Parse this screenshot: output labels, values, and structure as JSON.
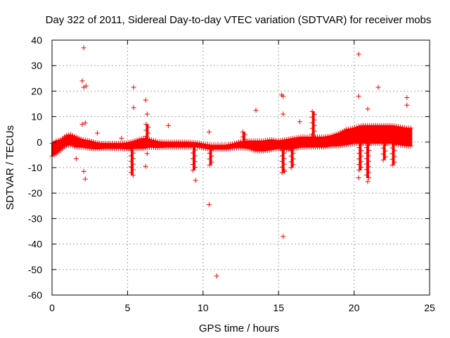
{
  "chart_data": {
    "type": "scatter",
    "title": "Day 322 of 2011, Sidereal Day-to-day VTEC variation (SDTVAR) for receiver mobs",
    "xlabel": "GPS time / hours",
    "ylabel": "SDTVAR / TECUs",
    "xlim": [
      0,
      25
    ],
    "ylim": [
      -60,
      40
    ],
    "xticks": [
      "0",
      "5",
      "10",
      "15",
      "20",
      "25"
    ],
    "yticks": [
      "40",
      "30",
      "20",
      "10",
      "0",
      "-10",
      "-20",
      "-30",
      "-40",
      "-50",
      "-60"
    ],
    "grid": true,
    "marker": "+",
    "color": "#ff0000",
    "band": {
      "x": [
        0.0,
        0.3,
        0.6,
        0.9,
        1.2,
        1.6,
        2.0,
        2.5,
        3.0,
        3.5,
        4.0,
        4.5,
        5.0,
        5.5,
        6.0,
        6.5,
        7.0,
        7.5,
        8.0,
        8.5,
        9.0,
        9.5,
        10.0,
        10.5,
        11.0,
        11.5,
        12.0,
        12.5,
        13.0,
        13.5,
        14.0,
        14.5,
        15.0,
        15.5,
        16.0,
        16.5,
        17.0,
        17.5,
        18.0,
        18.5,
        19.0,
        19.5,
        20.0,
        20.5,
        21.0,
        21.5,
        22.0,
        22.5,
        23.0,
        23.5,
        23.8
      ],
      "center": [
        -3.0,
        -2.0,
        -1.0,
        0.5,
        1.0,
        0.0,
        -0.5,
        -1.0,
        -1.5,
        -1.5,
        -1.5,
        -1.5,
        -1.5,
        -1.0,
        -0.5,
        -0.5,
        -1.0,
        -1.0,
        -1.0,
        -1.0,
        -1.0,
        -1.0,
        -1.5,
        -2.0,
        -2.0,
        -2.0,
        -1.5,
        -1.0,
        -1.0,
        -1.5,
        -1.5,
        -1.0,
        -1.0,
        -1.0,
        -0.5,
        0.0,
        0.0,
        0.0,
        0.0,
        0.5,
        1.0,
        2.0,
        2.5,
        3.0,
        3.0,
        3.0,
        3.0,
        3.0,
        2.5,
        2.0,
        2.0
      ],
      "half_width": [
        2.5,
        2.5,
        2.0,
        2.0,
        2.0,
        2.0,
        1.5,
        1.5,
        1.2,
        1.0,
        1.0,
        1.0,
        1.2,
        1.5,
        2.0,
        1.5,
        1.2,
        1.0,
        1.0,
        1.0,
        1.0,
        0.8,
        0.8,
        0.8,
        0.8,
        0.8,
        0.8,
        1.2,
        1.5,
        2.0,
        2.0,
        2.0,
        1.5,
        2.0,
        2.0,
        2.0,
        2.0,
        2.0,
        2.0,
        2.0,
        2.5,
        3.0,
        3.0,
        3.5,
        3.5,
        3.5,
        3.5,
        3.5,
        3.5,
        3.5,
        3.5
      ]
    },
    "streaks": [
      {
        "x": 5.3,
        "y_from": -1,
        "y_to": -13
      },
      {
        "x": 6.3,
        "y_from": 0,
        "y_to": 7
      },
      {
        "x": 9.4,
        "y_from": -2,
        "y_to": -11
      },
      {
        "x": 10.5,
        "y_from": -2,
        "y_to": -9
      },
      {
        "x": 12.7,
        "y_from": 0,
        "y_to": 4
      },
      {
        "x": 15.3,
        "y_from": -1,
        "y_to": -12
      },
      {
        "x": 15.9,
        "y_from": -1,
        "y_to": -10
      },
      {
        "x": 17.3,
        "y_from": 1,
        "y_to": 12
      },
      {
        "x": 20.4,
        "y_from": 0,
        "y_to": -11
      },
      {
        "x": 20.9,
        "y_from": 0,
        "y_to": -14
      },
      {
        "x": 22.0,
        "y_from": 0,
        "y_to": -7
      },
      {
        "x": 22.6,
        "y_from": 0,
        "y_to": -9
      }
    ],
    "outliers": [
      {
        "x": 2.1,
        "y": 37
      },
      {
        "x": 2.0,
        "y": 24
      },
      {
        "x": 2.1,
        "y": 21.5
      },
      {
        "x": 2.25,
        "y": 22
      },
      {
        "x": 2.0,
        "y": 7
      },
      {
        "x": 2.2,
        "y": 7.5
      },
      {
        "x": 2.1,
        "y": -11.5
      },
      {
        "x": 2.2,
        "y": -14.5
      },
      {
        "x": 5.4,
        "y": 21.5
      },
      {
        "x": 5.4,
        "y": 13.5
      },
      {
        "x": 6.2,
        "y": 16.5
      },
      {
        "x": 6.3,
        "y": 11
      },
      {
        "x": 6.2,
        "y": -9.5
      },
      {
        "x": 7.7,
        "y": 6.5
      },
      {
        "x": 9.5,
        "y": -15
      },
      {
        "x": 10.4,
        "y": 4
      },
      {
        "x": 10.4,
        "y": -24.5
      },
      {
        "x": 10.9,
        "y": -52.5
      },
      {
        "x": 13.5,
        "y": 12.5
      },
      {
        "x": 15.2,
        "y": 18.5
      },
      {
        "x": 15.3,
        "y": 18
      },
      {
        "x": 15.3,
        "y": 11
      },
      {
        "x": 15.4,
        "y": -11.5
      },
      {
        "x": 15.3,
        "y": -37
      },
      {
        "x": 16.4,
        "y": 8
      },
      {
        "x": 20.3,
        "y": 34.5
      },
      {
        "x": 20.3,
        "y": 18
      },
      {
        "x": 20.9,
        "y": 13
      },
      {
        "x": 21.6,
        "y": 21.5
      },
      {
        "x": 23.5,
        "y": 17.5
      },
      {
        "x": 23.5,
        "y": 14.5
      },
      {
        "x": 20.3,
        "y": -14
      },
      {
        "x": 20.9,
        "y": -15.5
      },
      {
        "x": 1.6,
        "y": -6.5
      },
      {
        "x": 3.0,
        "y": 3.5
      },
      {
        "x": 4.6,
        "y": 1.5
      },
      {
        "x": 6.3,
        "y": -4.5
      }
    ]
  }
}
